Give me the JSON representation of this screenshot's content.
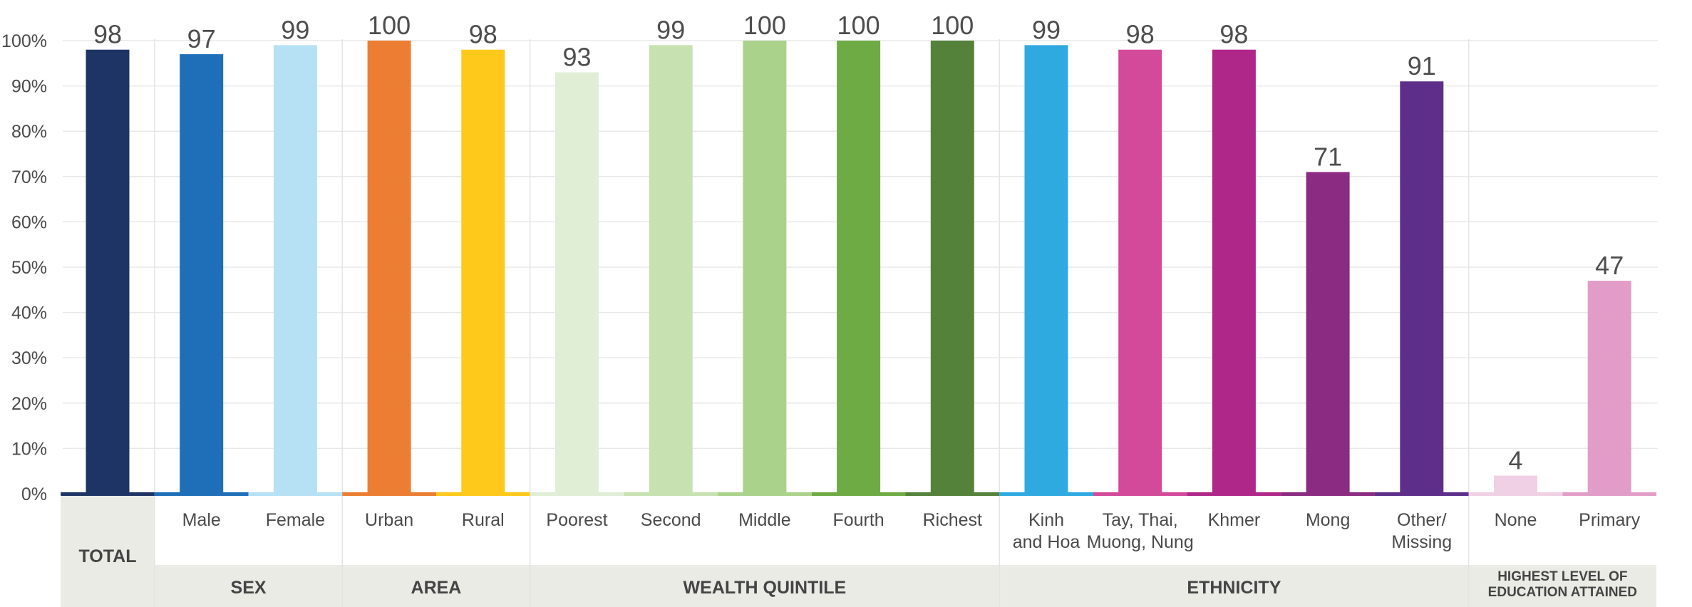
{
  "chart_data": {
    "type": "bar",
    "ylim": [
      0,
      100
    ],
    "y_ticks": [
      "0%",
      "10%",
      "20%",
      "30%",
      "40%",
      "50%",
      "60%",
      "70%",
      "80%",
      "90%",
      "100%"
    ],
    "grid": true,
    "categories": [
      {
        "label": [
          "",
          ""
        ],
        "value": 98,
        "color": "#1e3464"
      },
      {
        "label": [
          "Male",
          ""
        ],
        "value": 97,
        "color": "#1f6fb8"
      },
      {
        "label": [
          "Female",
          ""
        ],
        "value": 99,
        "color": "#b6e1f5"
      },
      {
        "label": [
          "Urban",
          ""
        ],
        "value": 100,
        "color": "#ec7e33"
      },
      {
        "label": [
          "Rural",
          ""
        ],
        "value": 98,
        "color": "#fec91b"
      },
      {
        "label": [
          "Poorest",
          ""
        ],
        "value": 93,
        "color": "#e0eed6"
      },
      {
        "label": [
          "Second",
          ""
        ],
        "value": 99,
        "color": "#c7e2b0"
      },
      {
        "label": [
          "Middle",
          ""
        ],
        "value": 100,
        "color": "#abd28b"
      },
      {
        "label": [
          "Fourth",
          ""
        ],
        "value": 100,
        "color": "#6fab44"
      },
      {
        "label": [
          "Richest",
          ""
        ],
        "value": 100,
        "color": "#54823a"
      },
      {
        "label": [
          "Kinh",
          "and Hoa"
        ],
        "value": 99,
        "color": "#2eaae1"
      },
      {
        "label": [
          "Tay, Thai,",
          "Muong, Nung"
        ],
        "value": 98,
        "color": "#d44a9b"
      },
      {
        "label": [
          "Khmer",
          ""
        ],
        "value": 98,
        "color": "#b0278a"
      },
      {
        "label": [
          "Mong",
          ""
        ],
        "value": 71,
        "color": "#8b2b82"
      },
      {
        "label": [
          "Other/",
          "Missing"
        ],
        "value": 91,
        "color": "#5e2f8a"
      },
      {
        "label": [
          "None",
          ""
        ],
        "value": 4,
        "color": "#f0d0e4"
      },
      {
        "label": [
          "Primary",
          ""
        ],
        "value": 47,
        "color": "#e29cc8"
      }
    ],
    "groups": [
      {
        "label": [
          "TOTAL"
        ],
        "start": 0,
        "end": 0
      },
      {
        "label": [
          "SEX"
        ],
        "start": 1,
        "end": 2
      },
      {
        "label": [
          "AREA"
        ],
        "start": 3,
        "end": 4
      },
      {
        "label": [
          "WEALTH QUINTILE"
        ],
        "start": 5,
        "end": 9
      },
      {
        "label": [
          "ETHNICITY"
        ],
        "start": 10,
        "end": 14
      },
      {
        "label": [
          "HIGHEST LEVEL OF",
          "EDUCATION ATTAINED"
        ],
        "start": 15,
        "end": 16
      }
    ],
    "colors": {
      "grid": "#e8e8e8",
      "group_band": "#ebebe6",
      "separator": "#e4e4e4"
    }
  }
}
